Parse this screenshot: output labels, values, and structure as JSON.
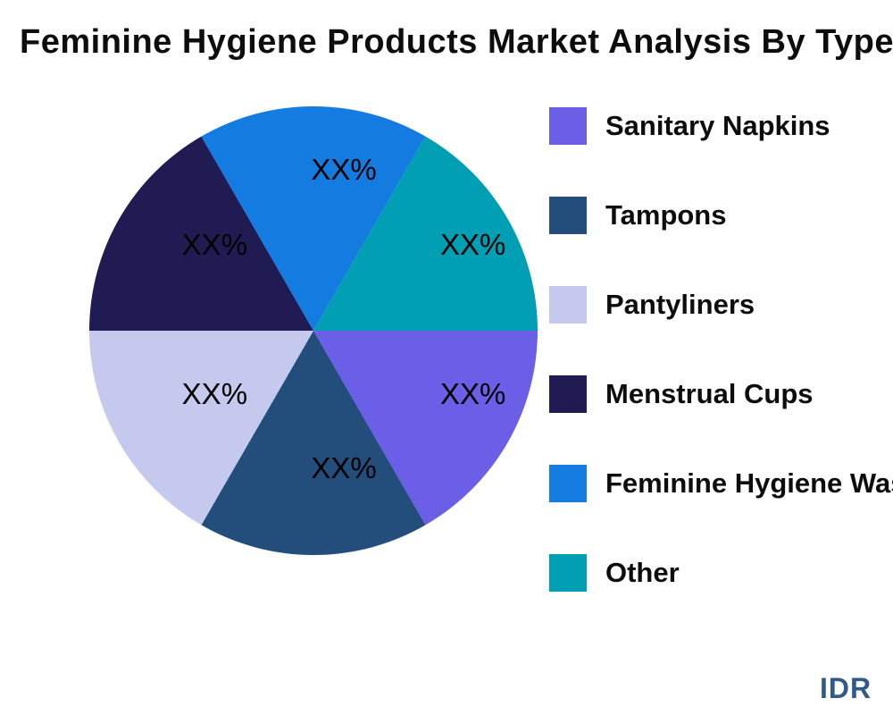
{
  "title": "Feminine Hygiene Products Market Analysis By Type",
  "watermark": "IDR",
  "chart_data": {
    "type": "pie",
    "title": "Feminine Hygiene Products Market Analysis By Type",
    "legend_position": "right",
    "direction": "clockwise",
    "start_angle_deg": 0,
    "slices": [
      {
        "label": "Sanitary Napkins",
        "value_label": "XX%",
        "value": 16.67,
        "color": "#6c5fe7"
      },
      {
        "label": "Tampons",
        "value_label": "XX%",
        "value": 16.67,
        "color": "#234e7c"
      },
      {
        "label": "Pantyliners",
        "value_label": "XX%",
        "value": 16.67,
        "color": "#c6c9ee"
      },
      {
        "label": "Menstrual Cups",
        "value_label": "XX%",
        "value": 16.67,
        "color": "#211b54"
      },
      {
        "label": "Feminine Hygiene Wash",
        "value_label": "XX%",
        "value": 16.67,
        "color": "#147be0"
      },
      {
        "label": "Other",
        "value_label": "XX%",
        "value": 16.67,
        "color": "#019fb4"
      }
    ]
  }
}
